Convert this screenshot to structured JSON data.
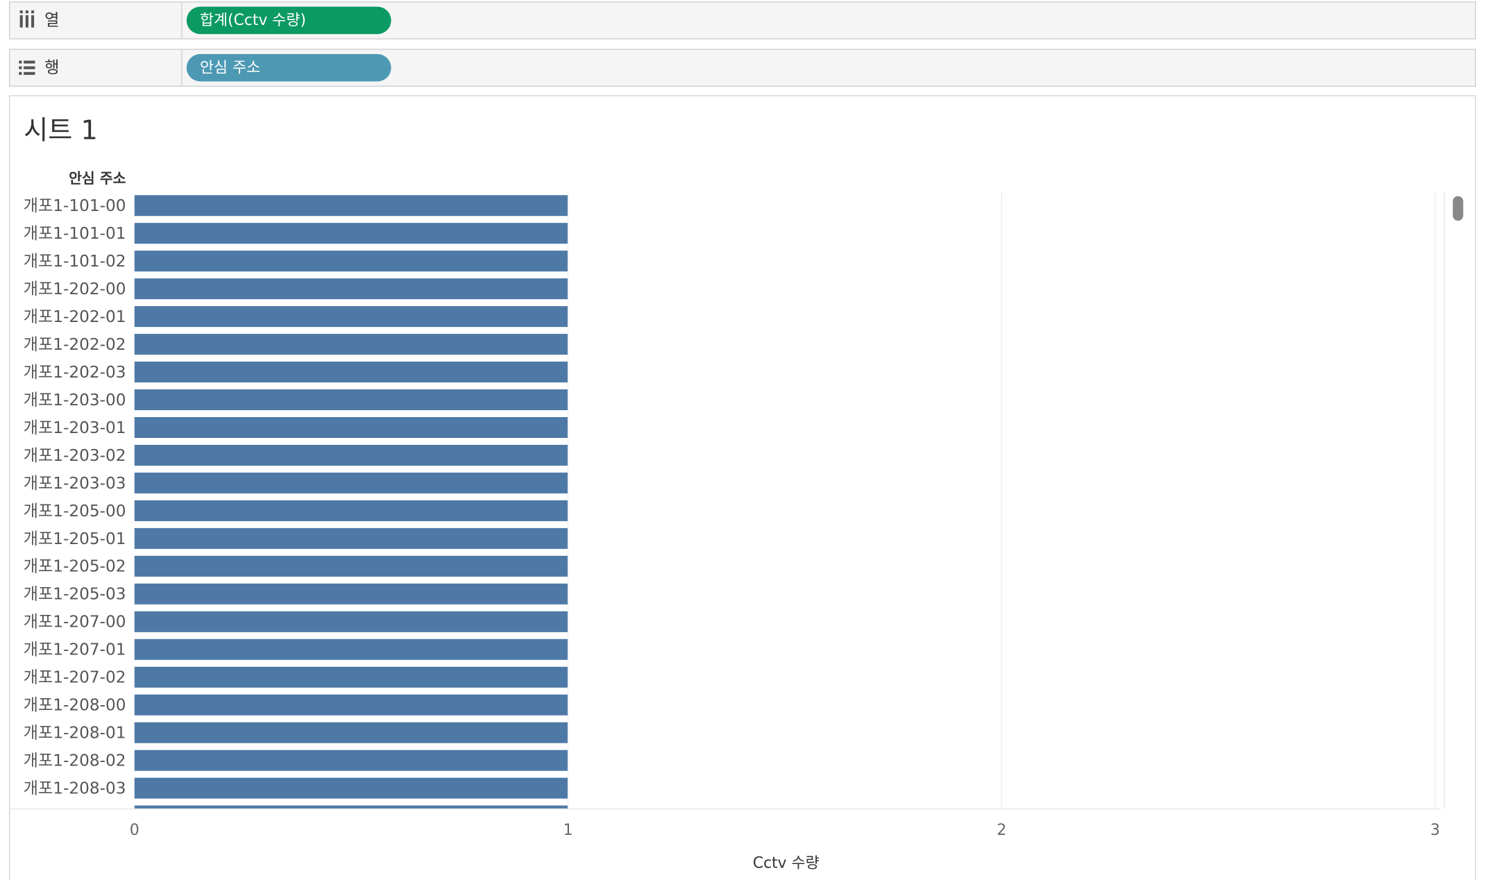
{
  "shelves": [
    {
      "label": "열",
      "pill": "합계(Cctv 수량)",
      "color": "#0b9a63"
    },
    {
      "label": "행",
      "pill": "안심 주소",
      "color": "#4d99b4"
    }
  ],
  "chart_data": {
    "type": "bar",
    "orientation": "horizontal",
    "title": "시트 1",
    "ylabel": "안심 주소",
    "xlabel": "Cctv 수량",
    "categories": [
      "개포1-101-00",
      "개포1-101-01",
      "개포1-101-02",
      "개포1-202-00",
      "개포1-202-01",
      "개포1-202-02",
      "개포1-202-03",
      "개포1-203-00",
      "개포1-203-01",
      "개포1-203-02",
      "개포1-203-03",
      "개포1-205-00",
      "개포1-205-01",
      "개포1-205-02",
      "개포1-205-03",
      "개포1-207-00",
      "개포1-207-01",
      "개포1-207-02",
      "개포1-208-00",
      "개포1-208-01",
      "개포1-208-02",
      "개포1-208-03",
      null
    ],
    "values": [
      1,
      1,
      1,
      1,
      1,
      1,
      1,
      1,
      1,
      1,
      1,
      1,
      1,
      1,
      1,
      1,
      1,
      1,
      1,
      1,
      1,
      1,
      1
    ],
    "color": "#4e79a7",
    "xlim": [
      0,
      3.01
    ],
    "xticks": [
      0,
      1,
      2,
      3
    ],
    "grid": true
  }
}
